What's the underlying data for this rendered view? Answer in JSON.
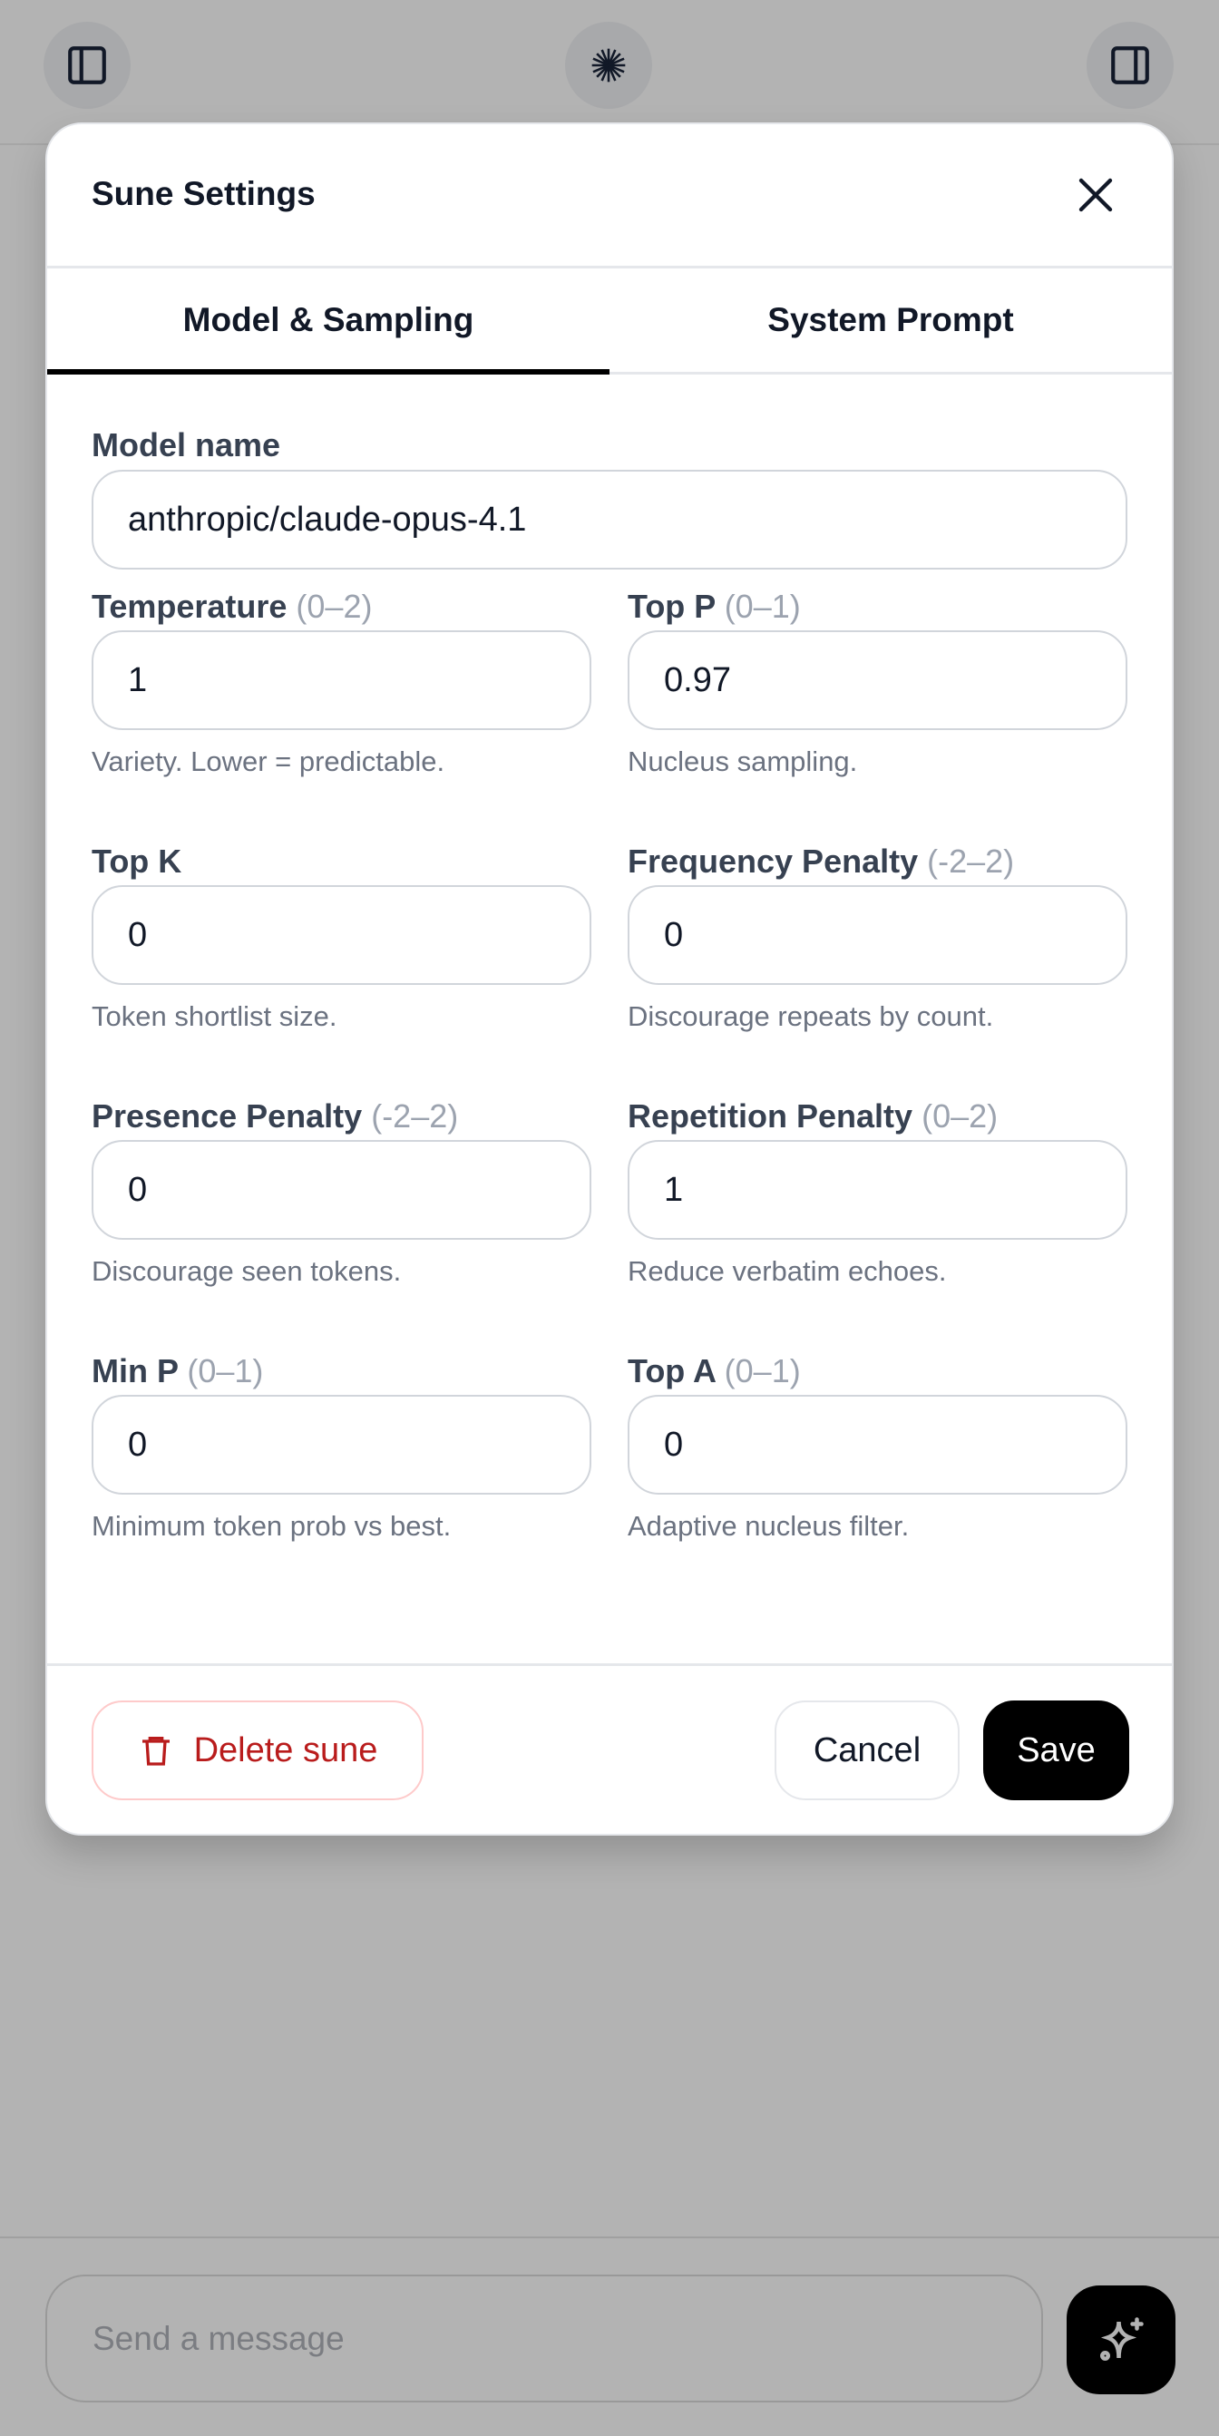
{
  "topbar": {
    "left_icon": "sidebar-left-icon",
    "center_icon": "starburst-logo-icon",
    "right_icon": "sidebar-right-icon"
  },
  "modal": {
    "title": "Sune Settings",
    "close_icon": "close-icon",
    "tabs": [
      {
        "label": "Model & Sampling",
        "active": true
      },
      {
        "label": "System Prompt",
        "active": false
      }
    ],
    "model_name": {
      "label": "Model name",
      "value": "anthropic/claude-opus-4.1"
    },
    "fields": [
      {
        "label": "Temperature",
        "range": "(0–2)",
        "value": "1",
        "help": "Variety. Lower = predictable."
      },
      {
        "label": "Top P",
        "range": "(0–1)",
        "value": "0.97",
        "help": "Nucleus sampling."
      },
      {
        "label": "Top K",
        "range": "",
        "value": "0",
        "help": "Token shortlist size."
      },
      {
        "label": "Frequency Penalty",
        "range": "(-2–2)",
        "value": "0",
        "help": "Discourage repeats by count."
      },
      {
        "label": "Presence Penalty",
        "range": "(-2–2)",
        "value": "0",
        "help": "Discourage seen tokens."
      },
      {
        "label": "Repetition Penalty",
        "range": "(0–2)",
        "value": "1",
        "help": "Reduce verbatim echoes."
      },
      {
        "label": "Min P",
        "range": "(0–1)",
        "value": "0",
        "help": "Minimum token prob vs best."
      },
      {
        "label": "Top A",
        "range": "(0–1)",
        "value": "0",
        "help": "Adaptive nucleus filter."
      }
    ],
    "footer": {
      "delete_label": "Delete sune",
      "delete_icon": "trash-icon",
      "cancel_label": "Cancel",
      "save_label": "Save"
    }
  },
  "composer": {
    "placeholder": "Send a message",
    "send_icon": "sparkles-icon"
  },
  "colors": {
    "danger": "#b91c1c",
    "primary": "#000000",
    "overlay": "#b3b3b3"
  }
}
